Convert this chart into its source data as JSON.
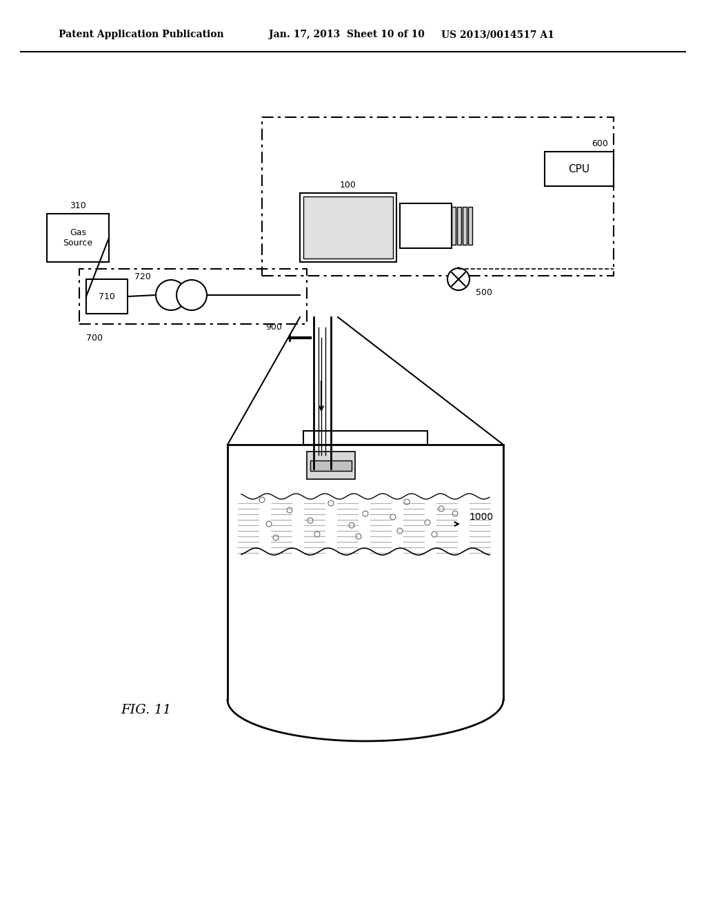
{
  "title_left": "Patent Application Publication",
  "title_center": "Jan. 17, 2013  Sheet 10 of 10",
  "title_right": "US 2013/0014517 A1",
  "fig_label": "FIG. 11",
  "bg_color": "#ffffff",
  "line_color": "#000000",
  "component_labels": {
    "gas_source": "Gas\nSource",
    "cpu": "CPU",
    "label_310": "310",
    "label_600": "600",
    "label_100": "100",
    "label_710": "710",
    "label_720": "720",
    "label_700": "700",
    "label_900": "900",
    "label_500": "500",
    "label_1000": "1000"
  }
}
